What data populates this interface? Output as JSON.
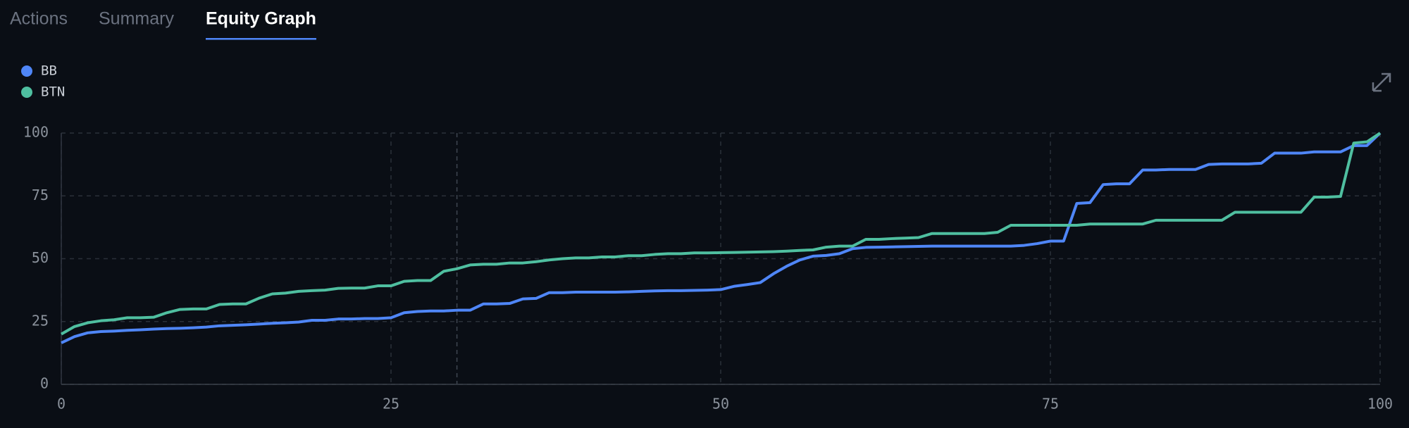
{
  "tabs": [
    "Actions",
    "Summary",
    "Equity Graph"
  ],
  "active_tab": 2,
  "chart_data": {
    "type": "line",
    "x": [
      0,
      1,
      2,
      3,
      4,
      5,
      6,
      7,
      8,
      9,
      10,
      11,
      12,
      13,
      14,
      15,
      16,
      17,
      18,
      19,
      20,
      21,
      22,
      23,
      24,
      25,
      26,
      27,
      28,
      29,
      30,
      31,
      32,
      33,
      34,
      35,
      36,
      37,
      38,
      39,
      40,
      41,
      42,
      43,
      44,
      45,
      46,
      47,
      48,
      49,
      50,
      51,
      52,
      53,
      54,
      55,
      56,
      57,
      58,
      59,
      60,
      61,
      62,
      63,
      64,
      65,
      66,
      67,
      68,
      69,
      70,
      71,
      72,
      73,
      74,
      75,
      76,
      77,
      78,
      79,
      80,
      81,
      82,
      83,
      84,
      85,
      86,
      87,
      88,
      89,
      90,
      91,
      92,
      93,
      94,
      95,
      96,
      97,
      98,
      99,
      100
    ],
    "series": [
      {
        "name": "BB",
        "color": "#4f86f7",
        "values": [
          16.5,
          19,
          20.5,
          21,
          21.2,
          21.5,
          21.7,
          22,
          22.2,
          22.3,
          22.5,
          22.8,
          23.3,
          23.5,
          23.7,
          24,
          24.3,
          24.5,
          24.8,
          25.5,
          25.5,
          26,
          26,
          26.2,
          26.2,
          26.5,
          28.5,
          29,
          29.2,
          29.2,
          29.5,
          29.5,
          32,
          32,
          32.2,
          34,
          34.2,
          36.5,
          36.5,
          36.7,
          36.7,
          36.7,
          36.7,
          36.8,
          37,
          37.2,
          37.3,
          37.3,
          37.4,
          37.5,
          37.7,
          39,
          39.7,
          40.5,
          44,
          47,
          49.5,
          51,
          51.3,
          52,
          54,
          54.5,
          54.6,
          54.7,
          54.8,
          54.9,
          55,
          55,
          55,
          55,
          55,
          55,
          55,
          55.3,
          56,
          57,
          57,
          72,
          72.3,
          79.5,
          79.8,
          79.8,
          85.3,
          85.3,
          85.5,
          85.5,
          85.5,
          87.5,
          87.7,
          87.7,
          87.7,
          88,
          92,
          92,
          92,
          92.5,
          92.5,
          92.5,
          95,
          95,
          100
        ]
      },
      {
        "name": "BTN",
        "color": "#4fbfa0",
        "values": [
          20,
          23,
          24.5,
          25.3,
          25.7,
          26.5,
          26.5,
          26.7,
          28.5,
          29.8,
          30,
          30,
          31.8,
          32,
          32,
          34.3,
          36,
          36.3,
          37,
          37.3,
          37.5,
          38.2,
          38.3,
          38.3,
          39.2,
          39.2,
          41,
          41.3,
          41.3,
          45,
          46,
          47.5,
          47.8,
          47.8,
          48.3,
          48.3,
          48.8,
          49.5,
          50,
          50.3,
          50.3,
          50.7,
          50.7,
          51.2,
          51.2,
          51.7,
          52,
          52,
          52.3,
          52.3,
          52.4,
          52.5,
          52.6,
          52.7,
          52.8,
          53,
          53.3,
          53.5,
          54.6,
          55,
          55,
          57.7,
          57.7,
          58,
          58.2,
          58.4,
          60,
          60,
          60,
          60,
          60,
          60.5,
          63.3,
          63.3,
          63.3,
          63.3,
          63.3,
          63.3,
          63.8,
          63.8,
          63.8,
          63.8,
          63.8,
          65.3,
          65.3,
          65.3,
          65.3,
          65.3,
          65.3,
          68.5,
          68.5,
          68.5,
          68.5,
          68.5,
          68.5,
          74.5,
          74.5,
          74.8,
          96,
          96.5,
          100
        ]
      }
    ],
    "xlim": [
      0,
      100
    ],
    "ylim": [
      0,
      100
    ],
    "xticks": [
      0,
      25,
      50,
      75,
      100
    ],
    "yticks": [
      0,
      25,
      50,
      75,
      100
    ],
    "grid": true,
    "highlight_x": 30,
    "legend": "top-left"
  }
}
